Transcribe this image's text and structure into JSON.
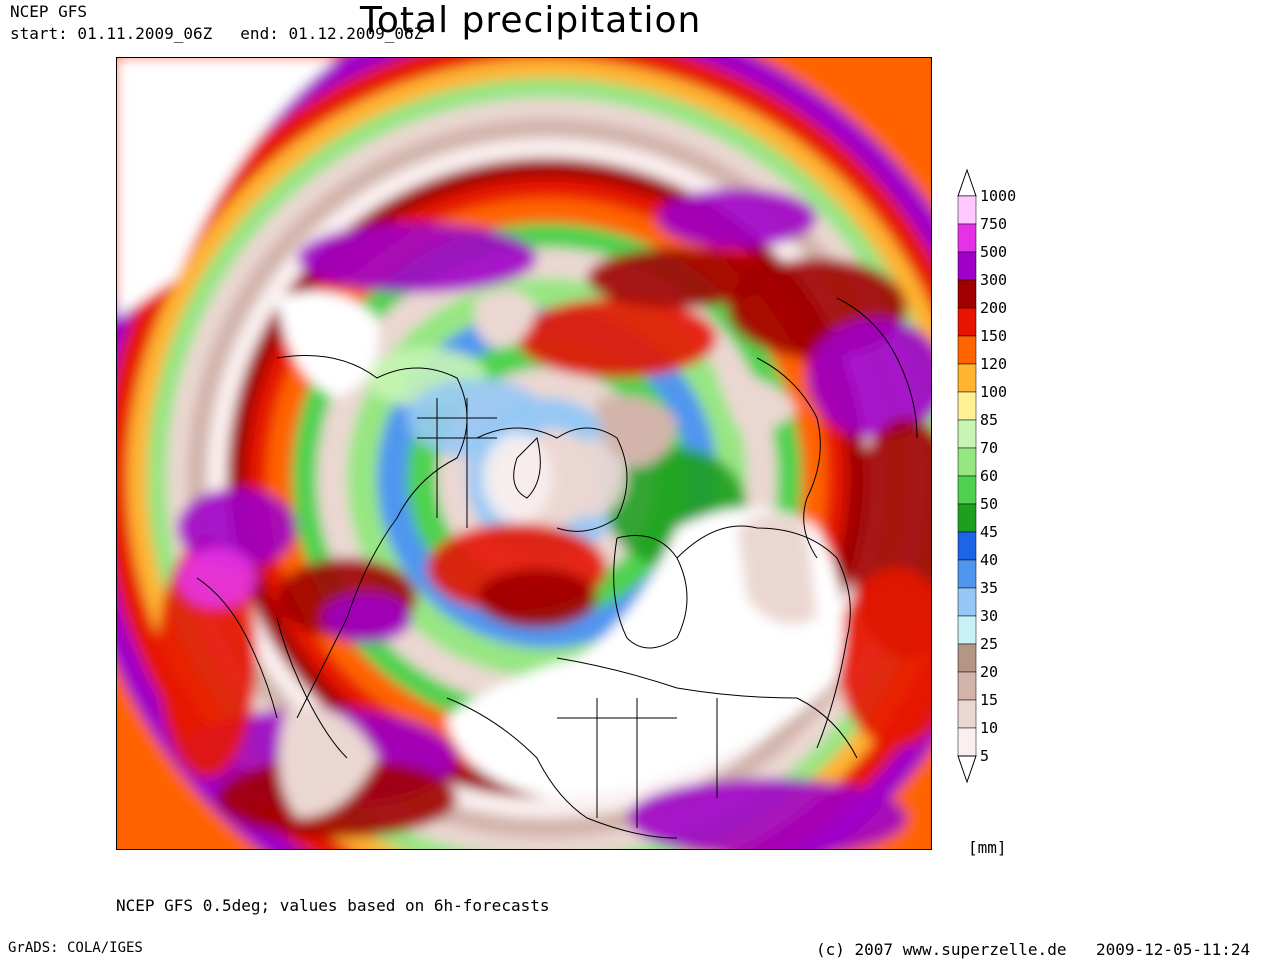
{
  "header": {
    "model": "NCEP GFS",
    "start": "start: 01.11.2009_06Z",
    "end": "end: 01.12.2009_06Z",
    "title": "Total precipitation"
  },
  "legend": {
    "unit": "[mm]",
    "levels": [
      "1000",
      "750",
      "500",
      "300",
      "200",
      "150",
      "120",
      "100",
      "85",
      "70",
      "60",
      "50",
      "45",
      "40",
      "35",
      "30",
      "25",
      "20",
      "15",
      "10",
      "5"
    ],
    "colors": [
      "#ffc8ff",
      "#e632e6",
      "#a000c8",
      "#a00000",
      "#e61400",
      "#ff6400",
      "#ffb432",
      "#fff096",
      "#c8f5b4",
      "#96e682",
      "#50d250",
      "#1ea01e",
      "#1e64e6",
      "#5096f0",
      "#96c8f5",
      "#c8f0f5",
      "#b49687",
      "#d2b4aa",
      "#ebd7d2",
      "#faf0f0"
    ]
  },
  "map": {
    "colors": {
      "ocean_wet": "#a000c8",
      "heavy": "#e61400",
      "moderate": "#ff6400",
      "light": "#50d250",
      "dry": "#ebd7d2",
      "desert": "#ffffff",
      "coast": "#000000"
    }
  },
  "footer": {
    "note": "NCEP GFS 0.5deg; values based on 6h-forecasts",
    "software": "GrADS: COLA/IGES",
    "copyright": "(c) 2007 www.superzelle.de",
    "timestamp": "2009-12-05-11:24"
  }
}
